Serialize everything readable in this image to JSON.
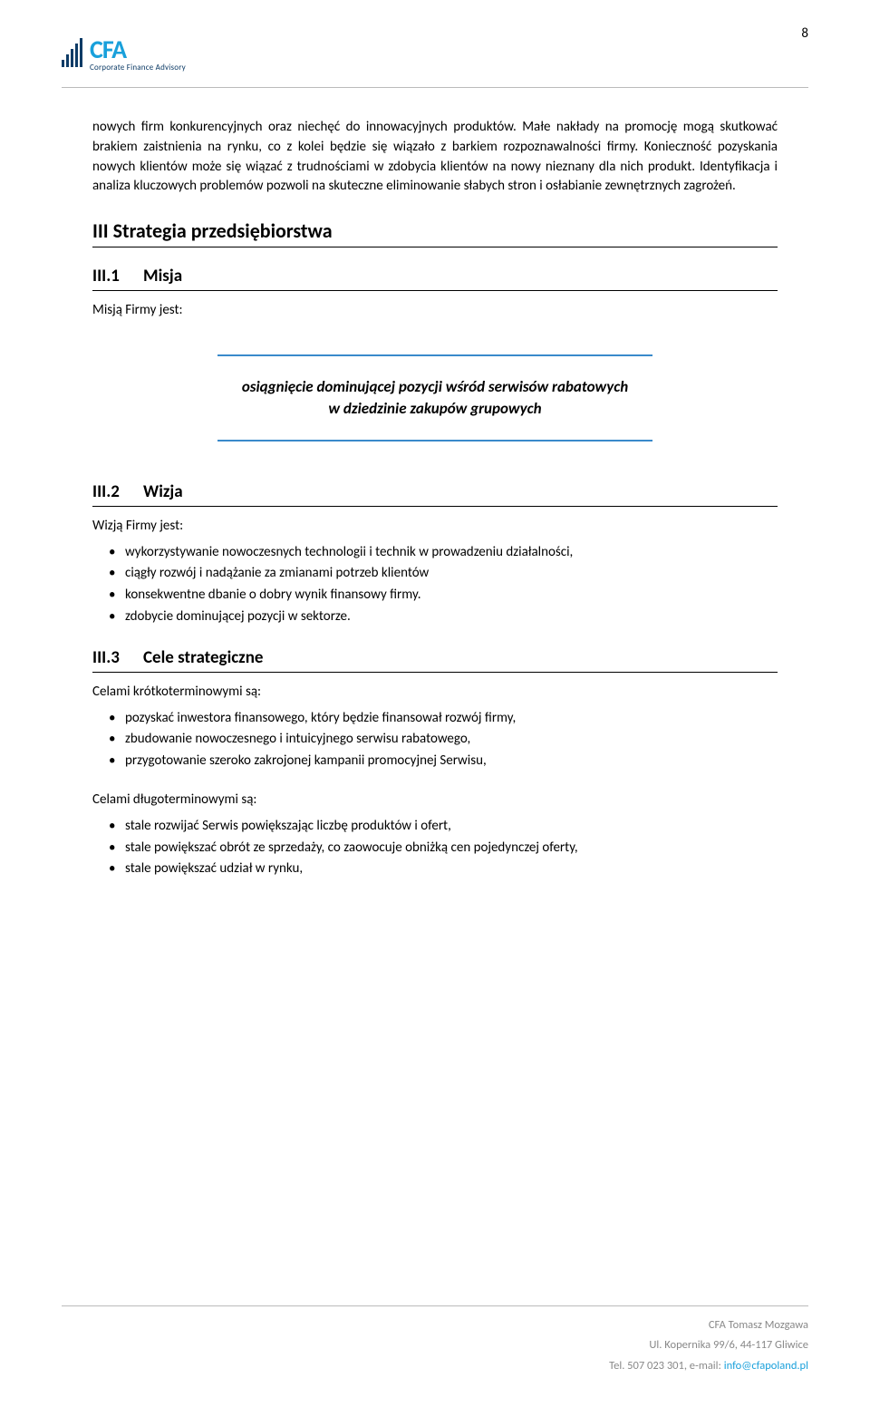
{
  "page_number": "8",
  "header": {
    "logo_main": "CFA",
    "logo_sub": "Corporate Finance Advisory"
  },
  "body_paragraph": "nowych firm konkurencyjnych oraz niechęć do innowacyjnych produktów. Małe nakłady na promocję mogą skutkować brakiem zaistnienia na rynku, co z kolei będzie się wiązało z barkiem rozpoznawalności firmy. Konieczność pozyskania nowych klientów może się wiązać z trudnościami w zdobycia klientów na nowy nieznany dla nich produkt. Identyfikacja i analiza kluczowych problemów pozwoli na skuteczne eliminowanie słabych stron i osłabianie zewnętrznych zagrożeń.",
  "sections": {
    "main_heading": "III  Strategia przedsiębiorstwa",
    "s1": {
      "num": "III.1",
      "title": "Misja",
      "lead": "Misją Firmy jest:",
      "quote_line1": "osiągnięcie dominującej pozycji wśród serwisów rabatowych",
      "quote_line2": "w dziedzinie zakupów grupowych"
    },
    "s2": {
      "num": "III.2",
      "title": "Wizja",
      "lead": "Wizją Firmy jest:",
      "items": [
        "wykorzystywanie nowoczesnych technologii i technik w prowadzeniu działalności,",
        "ciągły rozwój i nadążanie za zmianami potrzeb klientów",
        "konsekwentne dbanie o dobry wynik finansowy firmy.",
        "zdobycie dominującej pozycji w sektorze."
      ]
    },
    "s3": {
      "num": "III.3",
      "title": "Cele strategiczne",
      "lead_short": "Celami krótkoterminowymi są:",
      "items_short": [
        "pozyskać inwestora finansowego, który będzie finansował rozwój firmy,",
        "zbudowanie nowoczesnego i intuicyjnego serwisu rabatowego,",
        "przygotowanie szeroko zakrojonej kampanii promocyjnej Serwisu,"
      ],
      "lead_long": "Celami długoterminowymi są:",
      "items_long": [
        "stale rozwijać Serwis powiększając liczbę produktów i ofert,",
        "stale powiększać obrót ze sprzedaży, co zaowocuje obniżką cen pojedynczej oferty,",
        "stale powiększać udział w rynku,"
      ]
    }
  },
  "footer": {
    "line1": "CFA Tomasz Mozgawa",
    "line2": "Ul. Kopernika 99/6, 44-117 Gliwice",
    "line3_prefix": "Tel. 507 023 301, e-mail: ",
    "line3_link": "info@cfapoland.pl"
  },
  "colors": {
    "accent_blue": "#19a0db",
    "dark_blue": "#0d3b66",
    "quote_border": "#3a8acb",
    "footer_gray": "#888888"
  }
}
